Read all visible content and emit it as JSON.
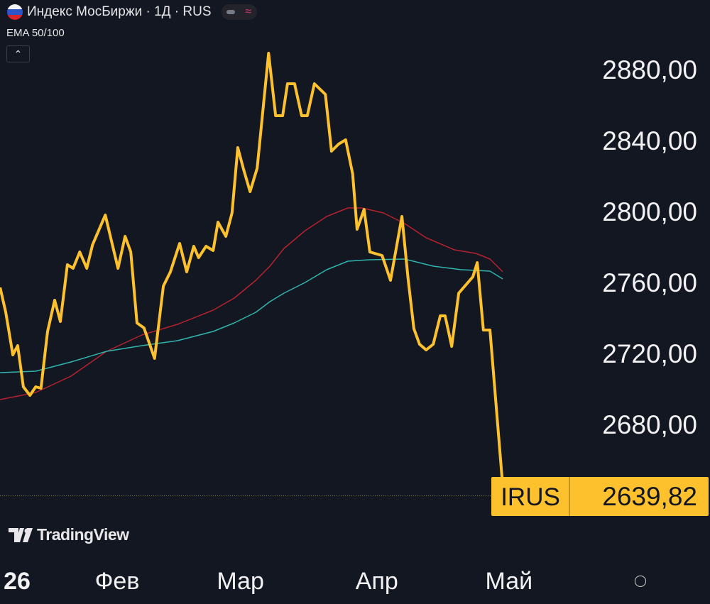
{
  "header": {
    "title": "Индекс МосБиржи · 1Д · RUS",
    "indicator": "EMA 50/100",
    "collapse_icon": "chevron-up-icon",
    "flag_icon": "russia-flag-icon"
  },
  "branding": {
    "logo_text": "TradingView"
  },
  "chart_data": {
    "type": "line",
    "title": "Индекс МосБиржи · 1Д · RUS",
    "ylim": [
      2640,
      2880
    ],
    "yticks": [
      2680,
      2720,
      2760,
      2800,
      2840,
      2880
    ],
    "ytick_labels": [
      "2680,00",
      "2720,00",
      "2760,00",
      "2800,00",
      "2840,00",
      "2880,00"
    ],
    "x_unit": "day of 2026",
    "xlim": [
      4.4,
      155
    ],
    "xticks": [
      {
        "x": 0,
        "label": "26",
        "bold": true
      },
      {
        "x": 31,
        "label": "Фев"
      },
      {
        "x": 59,
        "label": "Мар"
      },
      {
        "x": 90,
        "label": "Апр"
      },
      {
        "x": 120,
        "label": "Май"
      }
    ],
    "last_price": {
      "symbol": "IRUS",
      "value": 2639.82,
      "label": "2639,82"
    },
    "series": [
      {
        "name": "IRUS",
        "color": "#fcc12d",
        "x": [
          4.4,
          5.7,
          7.3,
          8.4,
          9.7,
          11.2,
          12.5,
          13.7,
          15.2,
          16.8,
          18.1,
          19.7,
          21.0,
          22.5,
          24.1,
          25.4,
          28.3,
          31.2,
          32.8,
          34.1,
          35.5,
          37.1,
          39.5,
          41.5,
          43.1,
          45.2,
          46.8,
          48.4,
          49.5,
          51.2,
          52.8,
          53.9,
          55.7,
          57.1,
          58.4,
          59.7,
          61.2,
          62.8,
          65.4,
          67.0,
          68.6,
          69.7,
          71.3,
          72.9,
          74.2,
          75.8,
          78.3,
          79.7,
          81.3,
          82.9,
          84.5,
          85.5,
          87.1,
          88.4,
          91.2,
          93.1,
          95.7,
          97.1,
          98.4,
          99.7,
          101.2,
          102.8,
          104.4,
          105.5,
          107.0,
          108.6,
          111.8,
          112.8,
          114.2,
          115.7,
          118.6
        ],
        "y": [
          2757.2,
          2743.2,
          2719.2,
          2724.4,
          2701.2,
          2696.4,
          2701.2,
          2700.4,
          2732.4,
          2750,
          2738,
          2770,
          2768,
          2777.2,
          2768,
          2781.2,
          2798,
          2768,
          2786,
          2777.2,
          2737.2,
          2734.4,
          2717.2,
          2758,
          2766,
          2782,
          2766,
          2780.4,
          2774,
          2780.4,
          2778,
          2794,
          2786,
          2799.2,
          2836,
          2824,
          2811.2,
          2824.4,
          2889.2,
          2854,
          2854,
          2872,
          2872,
          2854,
          2854,
          2872,
          2866,
          2834,
          2838,
          2840.4,
          2821.2,
          2790,
          2801.2,
          2777.2,
          2775.2,
          2761.2,
          2797.2,
          2762,
          2734,
          2725.2,
          2722,
          2725.2,
          2741.2,
          2741.2,
          2724,
          2754,
          2763.2,
          2771.2,
          2733.2,
          2733.2,
          2645
        ]
      },
      {
        "name": "EMA 50",
        "color": "#2fb5ad",
        "x": [
          4.4,
          12.5,
          20.5,
          28.6,
          36.6,
          44.7,
          52.8,
          57.6,
          62.5,
          65.7,
          68.9,
          73.7,
          78.6,
          83.4,
          88.3,
          96.3,
          102.8,
          109.2,
          115.7,
          118.6
        ],
        "y": [
          2709.2,
          2710,
          2715.2,
          2721.2,
          2724.4,
          2727.2,
          2732.4,
          2737.2,
          2743.2,
          2749.2,
          2754,
          2760,
          2767.2,
          2772,
          2772.8,
          2773.2,
          2769.2,
          2767.2,
          2766.4,
          2762
        ]
      },
      {
        "name": "EMA 100",
        "color": "#b5222e",
        "x": [
          4.4,
          12.5,
          20.5,
          28.6,
          36.6,
          44.7,
          52.8,
          57.6,
          62.5,
          65.7,
          68.9,
          73.7,
          78.6,
          83.4,
          86.6,
          91.5,
          96.3,
          101.2,
          107.6,
          112.5,
          115.7,
          118.6
        ],
        "y": [
          2694,
          2698,
          2707.2,
          2721.2,
          2730.4,
          2736.4,
          2744.4,
          2751.2,
          2761.2,
          2769.2,
          2779.2,
          2789.2,
          2797.2,
          2802,
          2802,
          2799.2,
          2793.2,
          2785.2,
          2778.4,
          2776.4,
          2773.2,
          2766
        ]
      }
    ]
  }
}
